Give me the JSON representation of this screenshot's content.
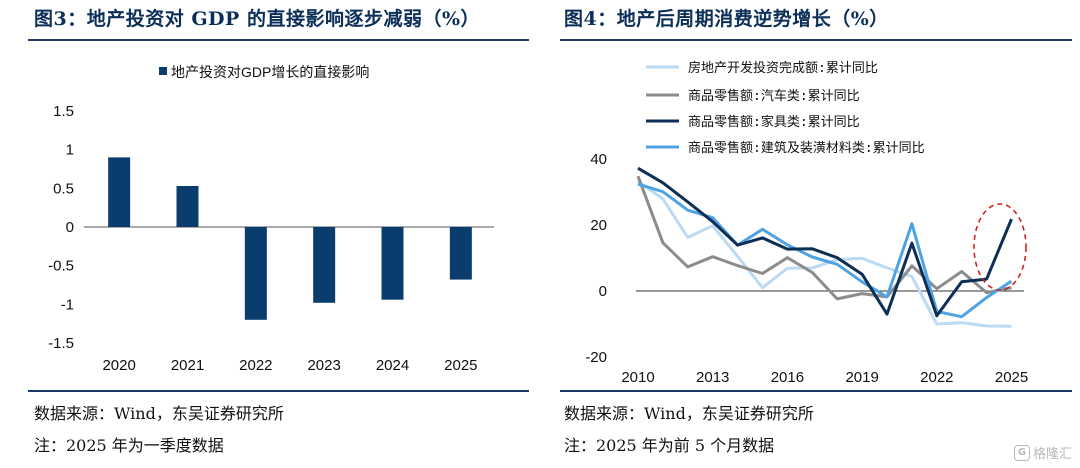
{
  "left": {
    "title": "图3：地产投资对 GDP 的直接影响逐步减弱（%）",
    "source": "数据来源：Wind，东吴证券研究所",
    "note": "注：2025 年为一季度数据"
  },
  "right": {
    "title": "图4：地产后周期消费逆势增长（%）",
    "source": "数据来源：Wind，东吴证券研究所",
    "note": "注：2025 年为前 5 个月数据"
  },
  "watermark": "格隆汇",
  "chart_data": [
    {
      "type": "bar",
      "categories": [
        "2020",
        "2021",
        "2022",
        "2023",
        "2024",
        "2025"
      ],
      "series": [
        {
          "name": "地产投资对GDP增长的直接影响",
          "values": [
            0.9,
            0.53,
            -1.2,
            -0.98,
            -0.94,
            -0.68
          ],
          "color": "#0b3c6e"
        }
      ],
      "ylim": [
        -1.5,
        1.5
      ],
      "yticks": [
        "1.5",
        "1",
        "0.5",
        "0",
        "-0.5",
        "-1",
        "-1.5"
      ],
      "legend": "top-center"
    },
    {
      "type": "line",
      "x_ticks": [
        "2010",
        "2013",
        "2016",
        "2019",
        "2022",
        "2025"
      ],
      "yticks": [
        "40",
        "20",
        "0",
        "-20"
      ],
      "ylim": [
        -20,
        40
      ],
      "xlim": [
        2010,
        2025.5
      ],
      "legend": "top-left",
      "series": [
        {
          "name": "房地产开发投资完成额:累计同比",
          "color": "#bcdaf3",
          "x": [
            2010,
            2011,
            2012,
            2013,
            2014,
            2015,
            2016,
            2017,
            2018,
            2019,
            2020,
            2021,
            2022,
            2023,
            2024,
            2025
          ],
          "y": [
            33.2,
            27.9,
            16.2,
            19.8,
            10.5,
            1.0,
            6.9,
            7.0,
            9.5,
            9.9,
            7.0,
            4.4,
            -10.0,
            -9.6,
            -10.6,
            -10.7
          ]
        },
        {
          "name": "商品零售额:汽车类:累计同比",
          "color": "#8c8c8c",
          "x": [
            2010,
            2011,
            2012,
            2013,
            2014,
            2015,
            2016,
            2017,
            2018,
            2019,
            2020,
            2021,
            2022,
            2023,
            2024,
            2025
          ],
          "y": [
            34.8,
            14.6,
            7.3,
            10.4,
            7.7,
            5.3,
            10.1,
            5.6,
            -2.4,
            -0.8,
            -1.8,
            7.6,
            0.7,
            5.9,
            -0.5,
            1.0
          ]
        },
        {
          "name": "商品零售额:家具类:累计同比",
          "color": "#0e2f55",
          "x": [
            2010,
            2011,
            2012,
            2013,
            2014,
            2015,
            2016,
            2017,
            2018,
            2019,
            2020,
            2021,
            2022,
            2023,
            2024,
            2025
          ],
          "y": [
            37.2,
            32.8,
            27.0,
            21.0,
            13.9,
            16.1,
            12.7,
            12.8,
            10.1,
            5.1,
            -7.0,
            14.5,
            -7.5,
            2.8,
            3.6,
            21.8
          ]
        },
        {
          "name": "商品零售额:建筑及装潢材料类:累计同比",
          "color": "#4ea3e3",
          "x": [
            2010,
            2011,
            2012,
            2013,
            2014,
            2015,
            2016,
            2017,
            2018,
            2019,
            2020,
            2021,
            2022,
            2023,
            2024,
            2025
          ],
          "y": [
            32.4,
            30.1,
            24.5,
            22.2,
            13.9,
            18.7,
            14.0,
            10.3,
            8.1,
            2.8,
            -1.8,
            20.4,
            -6.2,
            -7.8,
            -2.0,
            3.0
          ]
        }
      ]
    }
  ]
}
